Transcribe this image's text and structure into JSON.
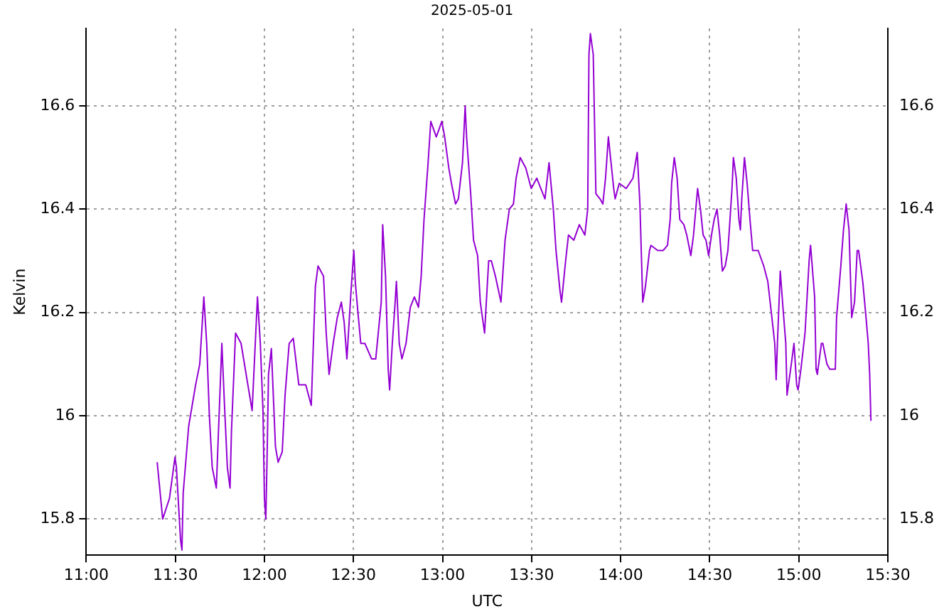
{
  "chart_data": {
    "type": "line",
    "title": "2025-05-01",
    "xlabel": "UTC",
    "ylabel": "Kelvin",
    "xlim": [
      11,
      15.5
    ],
    "xticks": [
      {
        "value": 11,
        "label": "11:00"
      },
      {
        "value": 11.5,
        "label": "11:30"
      },
      {
        "value": 12,
        "label": "12:00"
      },
      {
        "value": 12.5,
        "label": "12:30"
      },
      {
        "value": 13,
        "label": "13:00"
      },
      {
        "value": 13.5,
        "label": "13:30"
      },
      {
        "value": 14,
        "label": "14:00"
      },
      {
        "value": 14.5,
        "label": "14:30"
      },
      {
        "value": 15,
        "label": "15:00"
      },
      {
        "value": 15.5,
        "label": "15:30"
      }
    ],
    "ylim": [
      15.73,
      16.75
    ],
    "yticks": [
      15.8,
      16,
      16.2,
      16.4,
      16.6
    ],
    "y2lim": [
      15.73,
      16.75
    ],
    "y2ticks": [
      15.8,
      16,
      16.2,
      16.4,
      16.6
    ],
    "grid": true,
    "legend": false,
    "marker": "none",
    "line_style": "solid",
    "series": [
      {
        "color": "#9400d3",
        "x": [
          11.398,
          11.429,
          11.467,
          11.498,
          11.506,
          11.529,
          11.537,
          11.544,
          11.575,
          11.614,
          11.637,
          11.66,
          11.676,
          11.691,
          11.707,
          11.73,
          11.761,
          11.776,
          11.792,
          11.807,
          11.815,
          11.838,
          11.869,
          11.907,
          11.931,
          11.961,
          11.977,
          11.992,
          12.0,
          12.008,
          12.015,
          12.023,
          12.039,
          12.062,
          12.077,
          12.1,
          12.116,
          12.139,
          12.162,
          12.193,
          12.232,
          12.263,
          12.286,
          12.301,
          12.332,
          12.347,
          12.363,
          12.386,
          12.409,
          12.432,
          12.448,
          12.463,
          12.486,
          12.502,
          12.51,
          12.525,
          12.541,
          12.564,
          12.602,
          12.625,
          12.656,
          12.664,
          12.68,
          12.695,
          12.703,
          12.718,
          12.734,
          12.741,
          12.757,
          12.772,
          12.795,
          12.819,
          12.842,
          12.865,
          12.88,
          12.896,
          12.919,
          12.934,
          12.965,
          12.996,
          13.012,
          13.035,
          13.05,
          13.073,
          13.089,
          13.112,
          13.127,
          13.135,
          13.158,
          13.174,
          13.197,
          13.212,
          13.228,
          13.236,
          13.259,
          13.274,
          13.297,
          13.328,
          13.351,
          13.375,
          13.398,
          13.413,
          13.436,
          13.467,
          13.498,
          13.529,
          13.552,
          13.575,
          13.598,
          13.622,
          13.637,
          13.66,
          13.668,
          13.691,
          13.707,
          13.737,
          13.768,
          13.799,
          13.815,
          13.822,
          13.83,
          13.846,
          13.861,
          13.884,
          13.9,
          13.915,
          13.931,
          13.946,
          13.961,
          13.969,
          13.992,
          14.031,
          14.069,
          14.093,
          14.108,
          14.124,
          14.139,
          14.162,
          14.17,
          14.208,
          14.239,
          14.263,
          14.278,
          14.286,
          14.301,
          14.317,
          14.332,
          14.355,
          14.371,
          14.394,
          14.409,
          14.432,
          14.448,
          14.463,
          14.479,
          14.494,
          14.51,
          14.525,
          14.541,
          14.556,
          14.571,
          14.587,
          14.602,
          14.61,
          14.625,
          14.633,
          14.649,
          14.664,
          14.672,
          14.68,
          14.695,
          14.71,
          14.726,
          14.741,
          14.772,
          14.803,
          14.826,
          14.849,
          14.865,
          14.873,
          14.88,
          14.896,
          14.911,
          14.927,
          14.934,
          14.958,
          14.973,
          14.988,
          14.996,
          15.012,
          15.035,
          15.058,
          15.066,
          15.089,
          15.097,
          15.104,
          15.127,
          15.135,
          15.158,
          15.174,
          15.205,
          15.212,
          15.236,
          15.251,
          15.266,
          15.282,
          15.297,
          15.313,
          15.328,
          15.336,
          15.359,
          15.375,
          15.39,
          15.398,
          15.405
        ],
        "values": [
          15.91,
          15.8,
          15.84,
          15.92,
          15.9,
          15.76,
          15.74,
          15.85,
          15.98,
          16.06,
          16.1,
          16.23,
          16.14,
          16.0,
          15.9,
          15.86,
          16.14,
          16.02,
          15.9,
          15.86,
          15.97,
          16.16,
          16.14,
          16.06,
          16.01,
          16.23,
          16.14,
          16.01,
          15.84,
          15.8,
          15.92,
          16.08,
          16.13,
          15.94,
          15.91,
          15.93,
          16.04,
          16.14,
          16.15,
          16.06,
          16.06,
          16.02,
          16.25,
          16.29,
          16.27,
          16.16,
          16.08,
          16.14,
          16.19,
          16.22,
          16.18,
          16.11,
          16.24,
          16.32,
          16.26,
          16.2,
          16.14,
          16.14,
          16.11,
          16.11,
          16.22,
          16.37,
          16.27,
          16.09,
          16.05,
          16.14,
          16.22,
          16.26,
          16.14,
          16.11,
          16.14,
          16.21,
          16.23,
          16.21,
          16.27,
          16.38,
          16.49,
          16.57,
          16.54,
          16.57,
          16.54,
          16.48,
          16.45,
          16.41,
          16.42,
          16.49,
          16.6,
          16.54,
          16.43,
          16.34,
          16.31,
          16.22,
          16.18,
          16.16,
          16.3,
          16.3,
          16.27,
          16.22,
          16.34,
          16.4,
          16.41,
          16.46,
          16.5,
          16.48,
          16.44,
          16.46,
          16.44,
          16.42,
          16.49,
          16.4,
          16.32,
          16.24,
          16.22,
          16.3,
          16.35,
          16.34,
          16.37,
          16.35,
          16.4,
          16.7,
          16.74,
          16.7,
          16.43,
          16.42,
          16.41,
          16.46,
          16.54,
          16.49,
          16.44,
          16.42,
          16.45,
          16.44,
          16.46,
          16.51,
          16.41,
          16.22,
          16.25,
          16.32,
          16.33,
          16.32,
          16.32,
          16.33,
          16.38,
          16.45,
          16.5,
          16.46,
          16.38,
          16.37,
          16.35,
          16.31,
          16.35,
          16.44,
          16.4,
          16.35,
          16.34,
          16.31,
          16.35,
          16.38,
          16.4,
          16.35,
          16.28,
          16.29,
          16.32,
          16.36,
          16.44,
          16.5,
          16.46,
          16.38,
          16.36,
          16.42,
          16.5,
          16.45,
          16.38,
          16.32,
          16.32,
          16.29,
          16.26,
          16.19,
          16.14,
          16.07,
          16.14,
          16.28,
          16.21,
          16.14,
          16.04,
          16.1,
          16.14,
          16.06,
          16.05,
          16.09,
          16.16,
          16.3,
          16.33,
          16.23,
          16.09,
          16.08,
          16.14,
          16.14,
          16.1,
          16.09,
          16.09,
          16.19,
          16.29,
          16.36,
          16.41,
          16.36,
          16.19,
          16.22,
          16.32,
          16.32,
          16.26,
          16.2,
          16.14,
          16.08,
          15.99
        ]
      }
    ]
  }
}
